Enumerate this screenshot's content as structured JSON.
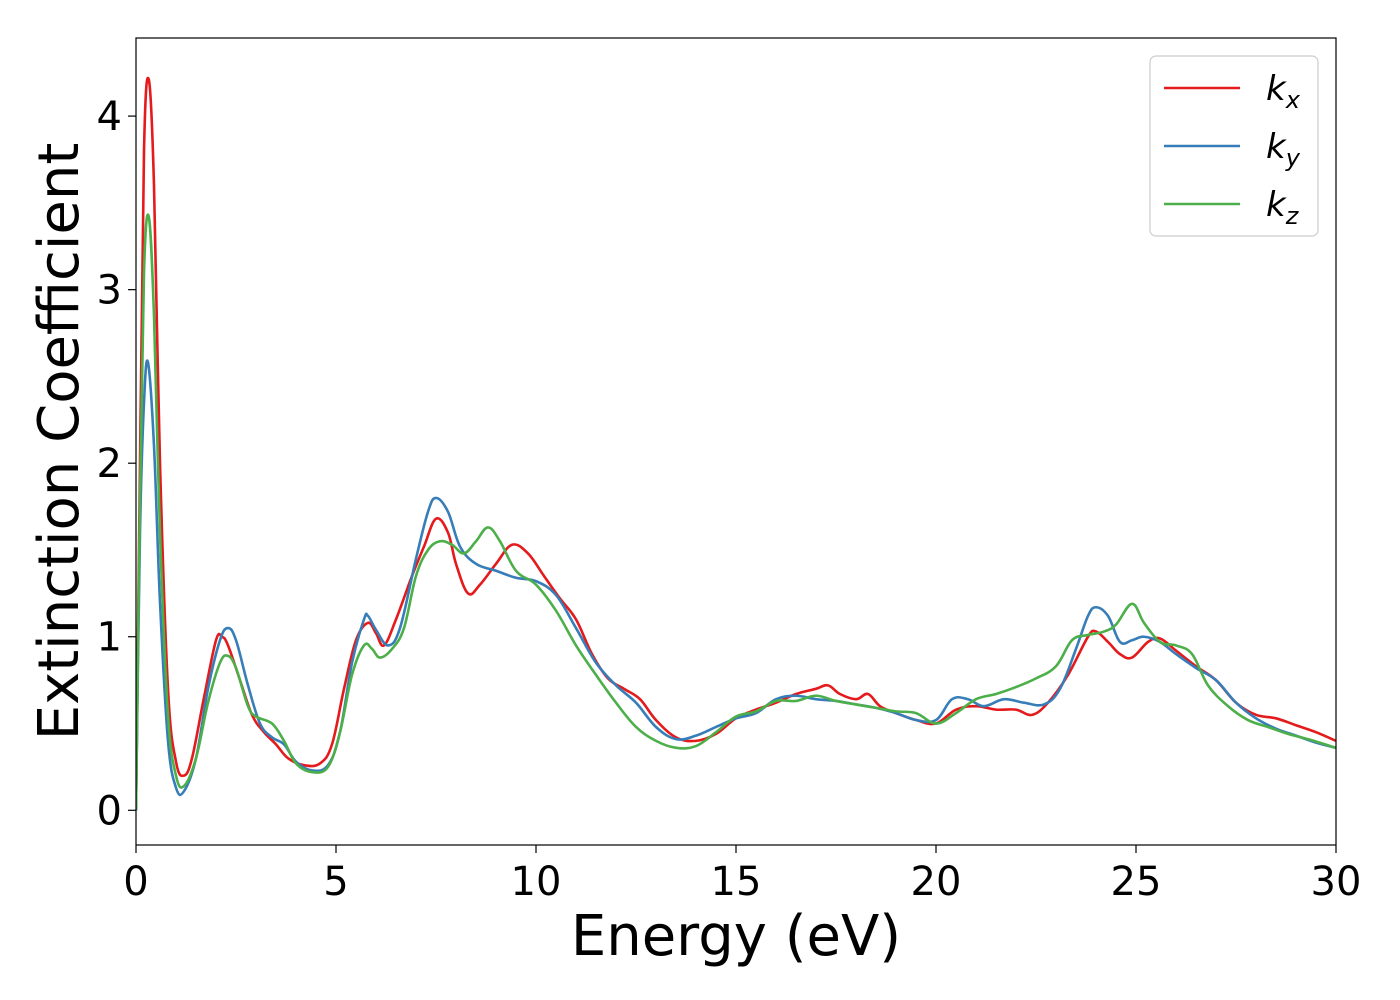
{
  "chart_data": {
    "type": "line",
    "title": "",
    "xlabel": "Energy (eV)",
    "ylabel": "Extinction Coefficient",
    "xlim": [
      0,
      30
    ],
    "ylim": [
      -0.2,
      4.45
    ],
    "xticks": [
      0,
      5,
      10,
      15,
      20,
      25,
      30
    ],
    "xtick_labels": [
      "0",
      "5",
      "10",
      "15",
      "20",
      "25",
      "30"
    ],
    "yticks": [
      0,
      1,
      2,
      3,
      4
    ],
    "ytick_labels": [
      "0",
      "1",
      "2",
      "3",
      "4"
    ],
    "grid": false,
    "legend_position": "top-right",
    "series": [
      {
        "name": "k_x",
        "label_main": "k",
        "label_sub": "x",
        "color": "#e41a1c",
        "points": [
          [
            0,
            0
          ],
          [
            0.1,
            2.0
          ],
          [
            0.2,
            3.8
          ],
          [
            0.32,
            4.21
          ],
          [
            0.45,
            3.6
          ],
          [
            0.6,
            2.0
          ],
          [
            0.8,
            0.7
          ],
          [
            1.0,
            0.28
          ],
          [
            1.2,
            0.2
          ],
          [
            1.4,
            0.3
          ],
          [
            1.7,
            0.65
          ],
          [
            2.0,
            0.98
          ],
          [
            2.15,
            1.0
          ],
          [
            2.3,
            0.95
          ],
          [
            2.6,
            0.75
          ],
          [
            2.9,
            0.55
          ],
          [
            3.2,
            0.45
          ],
          [
            3.5,
            0.38
          ],
          [
            3.8,
            0.3
          ],
          [
            4.2,
            0.26
          ],
          [
            4.6,
            0.27
          ],
          [
            4.9,
            0.38
          ],
          [
            5.2,
            0.7
          ],
          [
            5.5,
            0.98
          ],
          [
            5.8,
            1.08
          ],
          [
            6.0,
            1.02
          ],
          [
            6.2,
            0.95
          ],
          [
            6.5,
            1.1
          ],
          [
            6.9,
            1.35
          ],
          [
            7.2,
            1.52
          ],
          [
            7.5,
            1.68
          ],
          [
            7.8,
            1.6
          ],
          [
            8.0,
            1.42
          ],
          [
            8.3,
            1.25
          ],
          [
            8.6,
            1.3
          ],
          [
            9.0,
            1.42
          ],
          [
            9.4,
            1.53
          ],
          [
            9.8,
            1.48
          ],
          [
            10.2,
            1.35
          ],
          [
            10.6,
            1.22
          ],
          [
            11.0,
            1.1
          ],
          [
            11.4,
            0.9
          ],
          [
            11.8,
            0.76
          ],
          [
            12.2,
            0.7
          ],
          [
            12.6,
            0.64
          ],
          [
            13.0,
            0.52
          ],
          [
            13.5,
            0.42
          ],
          [
            14.0,
            0.4
          ],
          [
            14.5,
            0.44
          ],
          [
            15.0,
            0.53
          ],
          [
            15.5,
            0.58
          ],
          [
            16.0,
            0.62
          ],
          [
            16.5,
            0.67
          ],
          [
            17.0,
            0.7
          ],
          [
            17.3,
            0.72
          ],
          [
            17.6,
            0.67
          ],
          [
            18.0,
            0.64
          ],
          [
            18.3,
            0.67
          ],
          [
            18.6,
            0.6
          ],
          [
            19.0,
            0.56
          ],
          [
            19.5,
            0.52
          ],
          [
            20.0,
            0.5
          ],
          [
            20.5,
            0.58
          ],
          [
            21.0,
            0.6
          ],
          [
            21.5,
            0.58
          ],
          [
            22.0,
            0.58
          ],
          [
            22.4,
            0.55
          ],
          [
            22.8,
            0.62
          ],
          [
            23.3,
            0.78
          ],
          [
            23.8,
            1.0
          ],
          [
            24.0,
            1.03
          ],
          [
            24.3,
            0.97
          ],
          [
            24.6,
            0.9
          ],
          [
            24.9,
            0.88
          ],
          [
            25.3,
            0.97
          ],
          [
            25.6,
            0.99
          ],
          [
            26.0,
            0.92
          ],
          [
            26.5,
            0.83
          ],
          [
            27.0,
            0.75
          ],
          [
            27.5,
            0.62
          ],
          [
            28.0,
            0.55
          ],
          [
            28.5,
            0.53
          ],
          [
            29.0,
            0.49
          ],
          [
            29.5,
            0.45
          ],
          [
            30.0,
            0.4
          ]
        ]
      },
      {
        "name": "k_y",
        "label_main": "k",
        "label_sub": "y",
        "color": "#377eb8",
        "points": [
          [
            0,
            0
          ],
          [
            0.1,
            1.6
          ],
          [
            0.2,
            2.35
          ],
          [
            0.3,
            2.58
          ],
          [
            0.45,
            2.1
          ],
          [
            0.6,
            1.2
          ],
          [
            0.8,
            0.4
          ],
          [
            1.0,
            0.13
          ],
          [
            1.2,
            0.11
          ],
          [
            1.5,
            0.3
          ],
          [
            1.8,
            0.7
          ],
          [
            2.1,
            0.98
          ],
          [
            2.3,
            1.05
          ],
          [
            2.5,
            0.98
          ],
          [
            2.8,
            0.72
          ],
          [
            3.1,
            0.5
          ],
          [
            3.4,
            0.42
          ],
          [
            3.7,
            0.38
          ],
          [
            4.0,
            0.28
          ],
          [
            4.4,
            0.23
          ],
          [
            4.8,
            0.26
          ],
          [
            5.1,
            0.45
          ],
          [
            5.4,
            0.85
          ],
          [
            5.7,
            1.1
          ],
          [
            5.8,
            1.12
          ],
          [
            6.0,
            1.04
          ],
          [
            6.3,
            0.95
          ],
          [
            6.6,
            1.05
          ],
          [
            7.0,
            1.45
          ],
          [
            7.3,
            1.72
          ],
          [
            7.5,
            1.8
          ],
          [
            7.8,
            1.72
          ],
          [
            8.1,
            1.52
          ],
          [
            8.5,
            1.42
          ],
          [
            9.0,
            1.38
          ],
          [
            9.5,
            1.34
          ],
          [
            10.0,
            1.32
          ],
          [
            10.5,
            1.24
          ],
          [
            11.0,
            1.05
          ],
          [
            11.5,
            0.85
          ],
          [
            12.0,
            0.72
          ],
          [
            12.5,
            0.62
          ],
          [
            13.0,
            0.48
          ],
          [
            13.5,
            0.41
          ],
          [
            14.0,
            0.43
          ],
          [
            14.5,
            0.48
          ],
          [
            15.0,
            0.53
          ],
          [
            15.5,
            0.56
          ],
          [
            16.0,
            0.64
          ],
          [
            16.5,
            0.66
          ],
          [
            17.0,
            0.64
          ],
          [
            17.5,
            0.63
          ],
          [
            18.0,
            0.61
          ],
          [
            18.5,
            0.59
          ],
          [
            19.0,
            0.56
          ],
          [
            19.5,
            0.52
          ],
          [
            20.0,
            0.52
          ],
          [
            20.4,
            0.64
          ],
          [
            20.8,
            0.64
          ],
          [
            21.2,
            0.6
          ],
          [
            21.7,
            0.64
          ],
          [
            22.2,
            0.62
          ],
          [
            22.7,
            0.61
          ],
          [
            23.1,
            0.7
          ],
          [
            23.5,
            0.93
          ],
          [
            23.8,
            1.12
          ],
          [
            24.0,
            1.17
          ],
          [
            24.3,
            1.12
          ],
          [
            24.6,
            0.97
          ],
          [
            24.9,
            0.98
          ],
          [
            25.2,
            1.0
          ],
          [
            25.6,
            0.97
          ],
          [
            26.0,
            0.9
          ],
          [
            26.5,
            0.82
          ],
          [
            27.0,
            0.75
          ],
          [
            27.5,
            0.62
          ],
          [
            28.0,
            0.53
          ],
          [
            28.5,
            0.47
          ],
          [
            29.0,
            0.43
          ],
          [
            29.5,
            0.39
          ],
          [
            30.0,
            0.36
          ]
        ]
      },
      {
        "name": "k_z",
        "label_main": "k",
        "label_sub": "z",
        "color": "#4daf4a",
        "points": [
          [
            0,
            0
          ],
          [
            0.1,
            1.8
          ],
          [
            0.2,
            3.1
          ],
          [
            0.32,
            3.42
          ],
          [
            0.45,
            2.85
          ],
          [
            0.6,
            1.6
          ],
          [
            0.8,
            0.55
          ],
          [
            1.0,
            0.2
          ],
          [
            1.2,
            0.14
          ],
          [
            1.5,
            0.3
          ],
          [
            1.8,
            0.62
          ],
          [
            2.1,
            0.85
          ],
          [
            2.3,
            0.89
          ],
          [
            2.5,
            0.82
          ],
          [
            2.8,
            0.6
          ],
          [
            3.0,
            0.54
          ],
          [
            3.4,
            0.5
          ],
          [
            3.7,
            0.4
          ],
          [
            4.0,
            0.27
          ],
          [
            4.4,
            0.22
          ],
          [
            4.8,
            0.25
          ],
          [
            5.1,
            0.45
          ],
          [
            5.4,
            0.78
          ],
          [
            5.7,
            0.95
          ],
          [
            5.9,
            0.93
          ],
          [
            6.1,
            0.88
          ],
          [
            6.4,
            0.93
          ],
          [
            6.7,
            1.05
          ],
          [
            7.0,
            1.35
          ],
          [
            7.3,
            1.5
          ],
          [
            7.6,
            1.55
          ],
          [
            7.9,
            1.53
          ],
          [
            8.2,
            1.48
          ],
          [
            8.5,
            1.55
          ],
          [
            8.8,
            1.63
          ],
          [
            9.1,
            1.55
          ],
          [
            9.5,
            1.38
          ],
          [
            10.0,
            1.3
          ],
          [
            10.5,
            1.15
          ],
          [
            11.0,
            0.95
          ],
          [
            11.5,
            0.78
          ],
          [
            12.0,
            0.62
          ],
          [
            12.5,
            0.48
          ],
          [
            13.0,
            0.4
          ],
          [
            13.5,
            0.36
          ],
          [
            14.0,
            0.37
          ],
          [
            14.5,
            0.45
          ],
          [
            15.0,
            0.54
          ],
          [
            15.5,
            0.57
          ],
          [
            16.0,
            0.63
          ],
          [
            16.5,
            0.63
          ],
          [
            17.0,
            0.66
          ],
          [
            17.5,
            0.63
          ],
          [
            18.0,
            0.61
          ],
          [
            18.5,
            0.59
          ],
          [
            19.0,
            0.57
          ],
          [
            19.5,
            0.56
          ],
          [
            20.0,
            0.5
          ],
          [
            20.5,
            0.56
          ],
          [
            21.0,
            0.64
          ],
          [
            21.5,
            0.67
          ],
          [
            22.0,
            0.71
          ],
          [
            22.5,
            0.76
          ],
          [
            23.0,
            0.83
          ],
          [
            23.4,
            0.98
          ],
          [
            23.8,
            1.01
          ],
          [
            24.2,
            1.03
          ],
          [
            24.5,
            1.07
          ],
          [
            24.9,
            1.19
          ],
          [
            25.2,
            1.08
          ],
          [
            25.6,
            0.97
          ],
          [
            26.0,
            0.95
          ],
          [
            26.4,
            0.9
          ],
          [
            26.8,
            0.72
          ],
          [
            27.3,
            0.6
          ],
          [
            27.8,
            0.52
          ],
          [
            28.3,
            0.48
          ],
          [
            28.8,
            0.44
          ],
          [
            29.3,
            0.41
          ],
          [
            30.0,
            0.36
          ]
        ]
      }
    ]
  }
}
